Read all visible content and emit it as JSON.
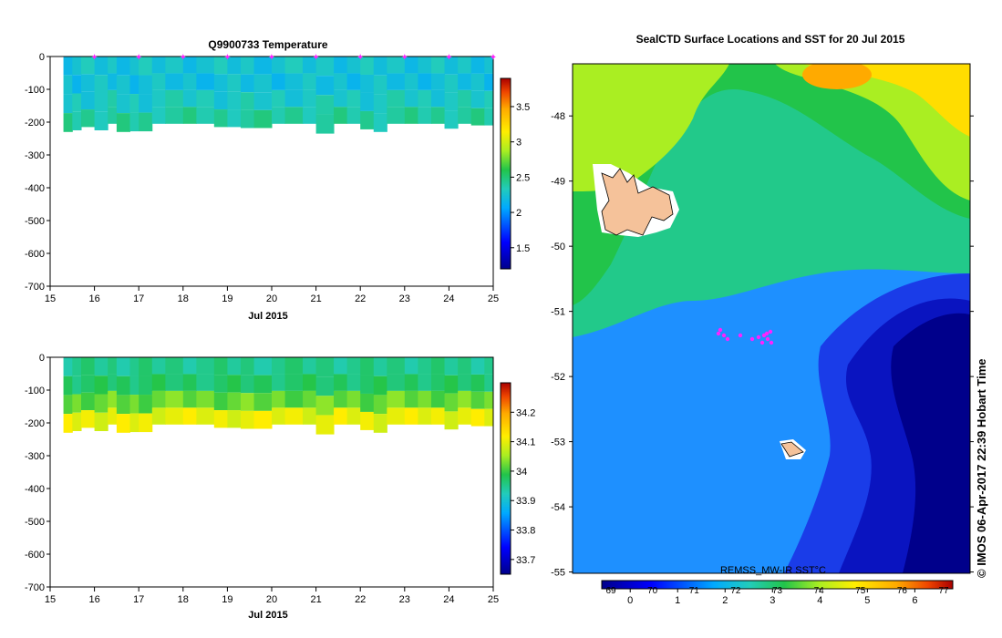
{
  "chart_data": [
    {
      "type": "heatmap",
      "title": "Q9900733  Temperature",
      "xlabel": "Jul 2015",
      "ylabel": "",
      "x_ticks": [
        "15",
        "16",
        "17",
        "18",
        "19",
        "20",
        "21",
        "22",
        "23",
        "24",
        "25"
      ],
      "xlim": [
        15,
        25
      ],
      "y_ticks": [
        "0",
        "-100",
        "-200",
        "-300",
        "-400",
        "-500",
        "-600",
        "-700"
      ],
      "ylim": [
        -700,
        0
      ],
      "colorbar_ticks": [
        "1.5",
        "2",
        "2.5",
        "3",
        "3.5"
      ],
      "colorbar_range": [
        1.2,
        3.9
      ],
      "profile_marker_days": [
        16,
        17,
        18,
        19,
        20,
        21,
        22,
        23,
        24,
        25
      ],
      "profiles": [
        {
          "day": 15.3,
          "depth": 230
        },
        {
          "day": 15.5,
          "depth": 225
        },
        {
          "day": 15.7,
          "depth": 215
        },
        {
          "day": 16.0,
          "depth": 225
        },
        {
          "day": 16.3,
          "depth": 205
        },
        {
          "day": 16.5,
          "depth": 230
        },
        {
          "day": 16.8,
          "depth": 228
        },
        {
          "day": 17.0,
          "depth": 228
        },
        {
          "day": 17.3,
          "depth": 205
        },
        {
          "day": 17.6,
          "depth": 205
        },
        {
          "day": 18.0,
          "depth": 205
        },
        {
          "day": 18.3,
          "depth": 205
        },
        {
          "day": 18.7,
          "depth": 215
        },
        {
          "day": 19.0,
          "depth": 215
        },
        {
          "day": 19.3,
          "depth": 218
        },
        {
          "day": 19.6,
          "depth": 218
        },
        {
          "day": 20.0,
          "depth": 205
        },
        {
          "day": 20.3,
          "depth": 205
        },
        {
          "day": 20.7,
          "depth": 205
        },
        {
          "day": 21.0,
          "depth": 235
        },
        {
          "day": 21.4,
          "depth": 205
        },
        {
          "day": 21.7,
          "depth": 205
        },
        {
          "day": 22.0,
          "depth": 222
        },
        {
          "day": 22.3,
          "depth": 230
        },
        {
          "day": 22.6,
          "depth": 205
        },
        {
          "day": 23.0,
          "depth": 205
        },
        {
          "day": 23.3,
          "depth": 205
        },
        {
          "day": 23.6,
          "depth": 205
        },
        {
          "day": 23.9,
          "depth": 220
        },
        {
          "day": 24.2,
          "depth": 205
        },
        {
          "day": 24.5,
          "depth": 210
        },
        {
          "day": 24.8,
          "depth": 210
        }
      ],
      "layer_values": [
        2.25,
        2.22,
        2.3,
        2.4
      ]
    },
    {
      "type": "heatmap",
      "title": "",
      "xlabel": "Jul 2015",
      "ylabel": "",
      "x_ticks": [
        "15",
        "16",
        "17",
        "18",
        "19",
        "20",
        "21",
        "22",
        "23",
        "24",
        "25"
      ],
      "xlim": [
        15,
        25
      ],
      "y_ticks": [
        "0",
        "-100",
        "-200",
        "-300",
        "-400",
        "-500",
        "-600",
        "-700"
      ],
      "ylim": [
        -700,
        0
      ],
      "colorbar_ticks": [
        "33.7",
        "33.8",
        "33.9",
        "34",
        "34.1",
        "34.2"
      ],
      "colorbar_range": [
        33.65,
        34.3
      ],
      "layer_values": [
        33.95,
        33.97,
        34.02,
        34.1
      ]
    },
    {
      "type": "heatmap",
      "title": "SealCTD Surface Locations and SST for 20 Jul 2015",
      "xlabel": "",
      "ylabel": "",
      "y_ticks": [
        "-48",
        "-49",
        "-50",
        "-51",
        "-52",
        "-53",
        "-54",
        "-55"
      ],
      "ylim": [
        -55.02,
        -47.2
      ],
      "colorbar_label": "REMSS_MW-IR SST°C",
      "colorbar_ticks": [
        "0",
        "1",
        "2",
        "3",
        "4",
        "5",
        "6"
      ],
      "colorbar_secondary_ticks": [
        "69",
        "70",
        "71",
        "72",
        "73",
        "74",
        "75",
        "76",
        "77"
      ],
      "colorbar_range": [
        -0.6,
        6.8
      ],
      "land_labels": [],
      "colors": {
        "cold": "#00008b",
        "cool": "#1e90ff",
        "mid": "#22c55e",
        "warm": "#ffd700",
        "hot": "#b22222",
        "land": "#f5c29a",
        "marker": "#ff22ff"
      }
    }
  ],
  "credit": "© IMOS 06-Apr-2017 22:39 Hobart Time"
}
